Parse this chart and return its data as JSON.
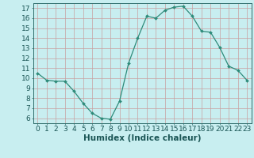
{
  "x": [
    0,
    1,
    2,
    3,
    4,
    5,
    6,
    7,
    8,
    9,
    10,
    11,
    12,
    13,
    14,
    15,
    16,
    17,
    18,
    19,
    20,
    21,
    22,
    23
  ],
  "y": [
    10.5,
    9.8,
    9.7,
    9.7,
    8.7,
    7.5,
    6.5,
    6.0,
    5.9,
    7.7,
    11.5,
    14.0,
    16.2,
    16.0,
    16.8,
    17.1,
    17.2,
    16.2,
    14.7,
    14.6,
    13.1,
    11.2,
    10.8,
    9.8
  ],
  "line_color": "#2e8b7a",
  "marker": "D",
  "marker_size": 2.0,
  "bg_color": "#c8eef0",
  "grid_color": "#c8a0a0",
  "xlabel": "Humidex (Indice chaleur)",
  "xlim": [
    -0.5,
    23.5
  ],
  "ylim": [
    5.5,
    17.5
  ],
  "yticks": [
    6,
    7,
    8,
    9,
    10,
    11,
    12,
    13,
    14,
    15,
    16,
    17
  ],
  "xticks": [
    0,
    1,
    2,
    3,
    4,
    5,
    6,
    7,
    8,
    9,
    10,
    11,
    12,
    13,
    14,
    15,
    16,
    17,
    18,
    19,
    20,
    21,
    22,
    23
  ],
  "tick_color": "#2e6b6a",
  "axis_color": "#2e6b6a",
  "font_size": 6.5,
  "xlabel_fontsize": 7.5,
  "label_color": "#1a5555"
}
